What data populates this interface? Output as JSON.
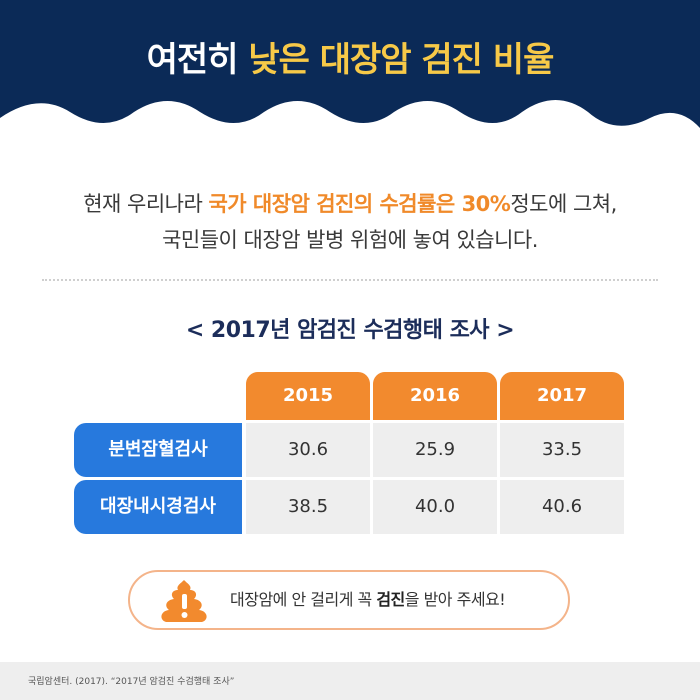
{
  "header": {
    "title_part1": "여전히 ",
    "title_part2": "낮은 대장암 검진 비율",
    "bg_color": "#0b2a57",
    "highlight_color": "#f7c948"
  },
  "intro": {
    "line1_a": "현재 우리나라 ",
    "line1_b": "국가 대장암 검진의 수검률은 30%",
    "line1_c": "정도에 그쳐,",
    "line2": "국민들이 대장암 발병 위험에 놓여 있습니다."
  },
  "survey": {
    "title": "< 2017년 암검진 수검행태 조사 >",
    "years": [
      "2015",
      "2016",
      "2017"
    ],
    "rows": [
      {
        "label": "분변잠혈검사",
        "values": [
          "30.6",
          "25.9",
          "33.5"
        ]
      },
      {
        "label": "대장내시경검사",
        "values": [
          "38.5",
          "40.0",
          "40.6"
        ]
      }
    ]
  },
  "notice": {
    "text_a": "대장암에 안 걸리게 꼭 ",
    "text_b": "검진",
    "text_c": "을 받아 주세요!",
    "icon": "poop-warning-icon"
  },
  "footer": {
    "source": "국립암센터. (2017). “2017년 암검진 수검행태 조사”"
  }
}
